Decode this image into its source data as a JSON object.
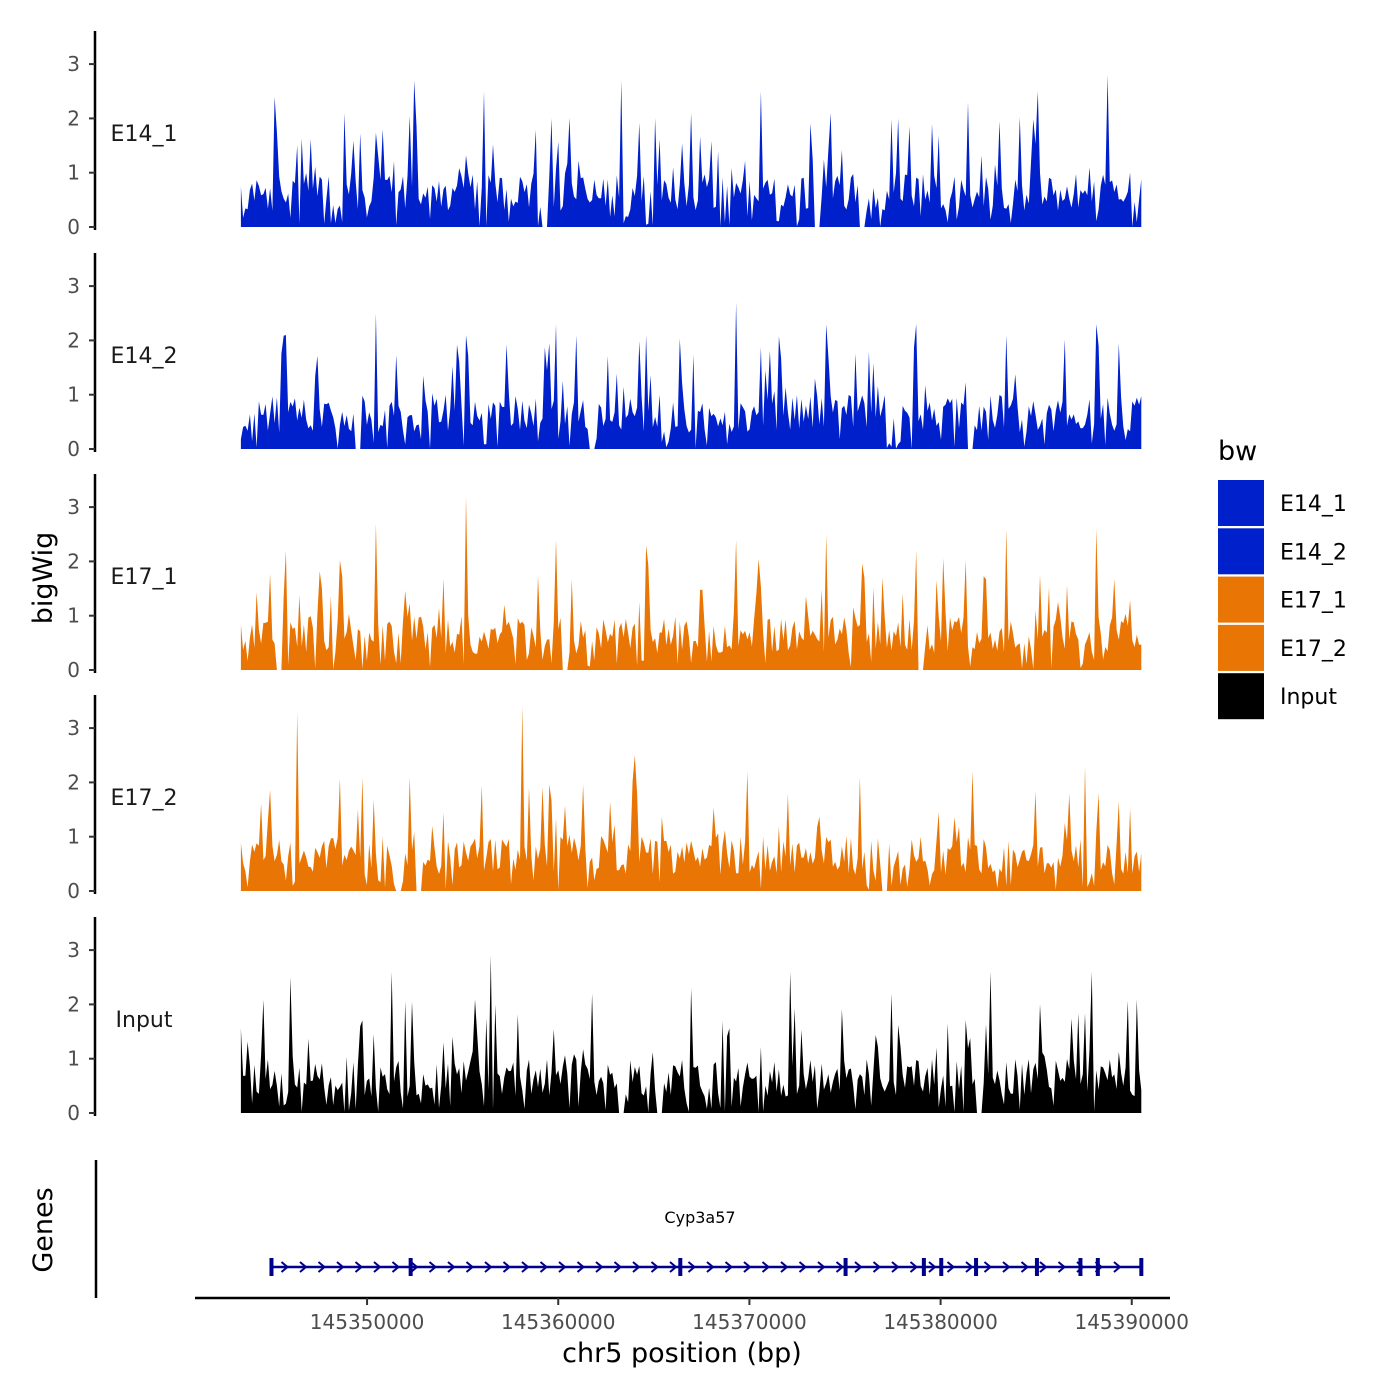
{
  "chart_data": {
    "type": "area",
    "title": "",
    "ylabel": "bigWig",
    "xlabel": "chr5 position (bp)",
    "xlim": [
      145341000,
      145392000
    ],
    "ylim": [
      0,
      3.6
    ],
    "y_ticks": [
      0,
      1,
      2,
      3
    ],
    "x_ticks": [
      145350000,
      145360000,
      145370000,
      145380000,
      145390000
    ],
    "signal_start": 145343400,
    "signal_end": 145390500,
    "legend": {
      "title": "bw",
      "placement": "right",
      "entries": [
        {
          "label": "E14_1",
          "color": "#0020CC"
        },
        {
          "label": "E14_2",
          "color": "#0020CC"
        },
        {
          "label": "E17_1",
          "color": "#E87504"
        },
        {
          "label": "E17_2",
          "color": "#E87504"
        },
        {
          "label": "Input",
          "color": "#000000"
        }
      ]
    },
    "series": [
      {
        "name": "E14_1",
        "color": "#0020CC",
        "peaks": [
          2.4,
          2.1,
          2.7,
          2.5,
          2.0,
          2.7,
          2.1,
          2.5,
          2.1,
          2.0,
          2.3,
          2.5,
          2.8
        ]
      },
      {
        "name": "E14_2",
        "color": "#0020CC",
        "peaks": [
          2.1,
          2.5,
          2.1,
          2.3,
          2.1,
          2.7,
          2.3,
          2.3,
          2.1,
          2.3
        ]
      },
      {
        "name": "E17_1",
        "color": "#E87504",
        "peaks": [
          2.2,
          2.7,
          3.2,
          2.4,
          2.3,
          2.4,
          2.5,
          2.2,
          2.6,
          2.6
        ]
      },
      {
        "name": "E17_2",
        "color": "#E87504",
        "peaks": [
          3.3,
          2.1,
          3.4,
          2.5,
          2.2,
          2.1,
          2.2,
          2.3
        ]
      },
      {
        "name": "Input",
        "color": "#000000",
        "peaks": [
          2.5,
          2.6,
          2.9,
          2.2,
          2.3,
          2.6,
          2.2,
          2.6,
          2.6
        ]
      }
    ],
    "genes_panel": {
      "label": "Genes",
      "gene_name": "Cyp3a57",
      "gene_start": 145345000,
      "gene_end": 145390500,
      "color": "#00008B"
    }
  }
}
